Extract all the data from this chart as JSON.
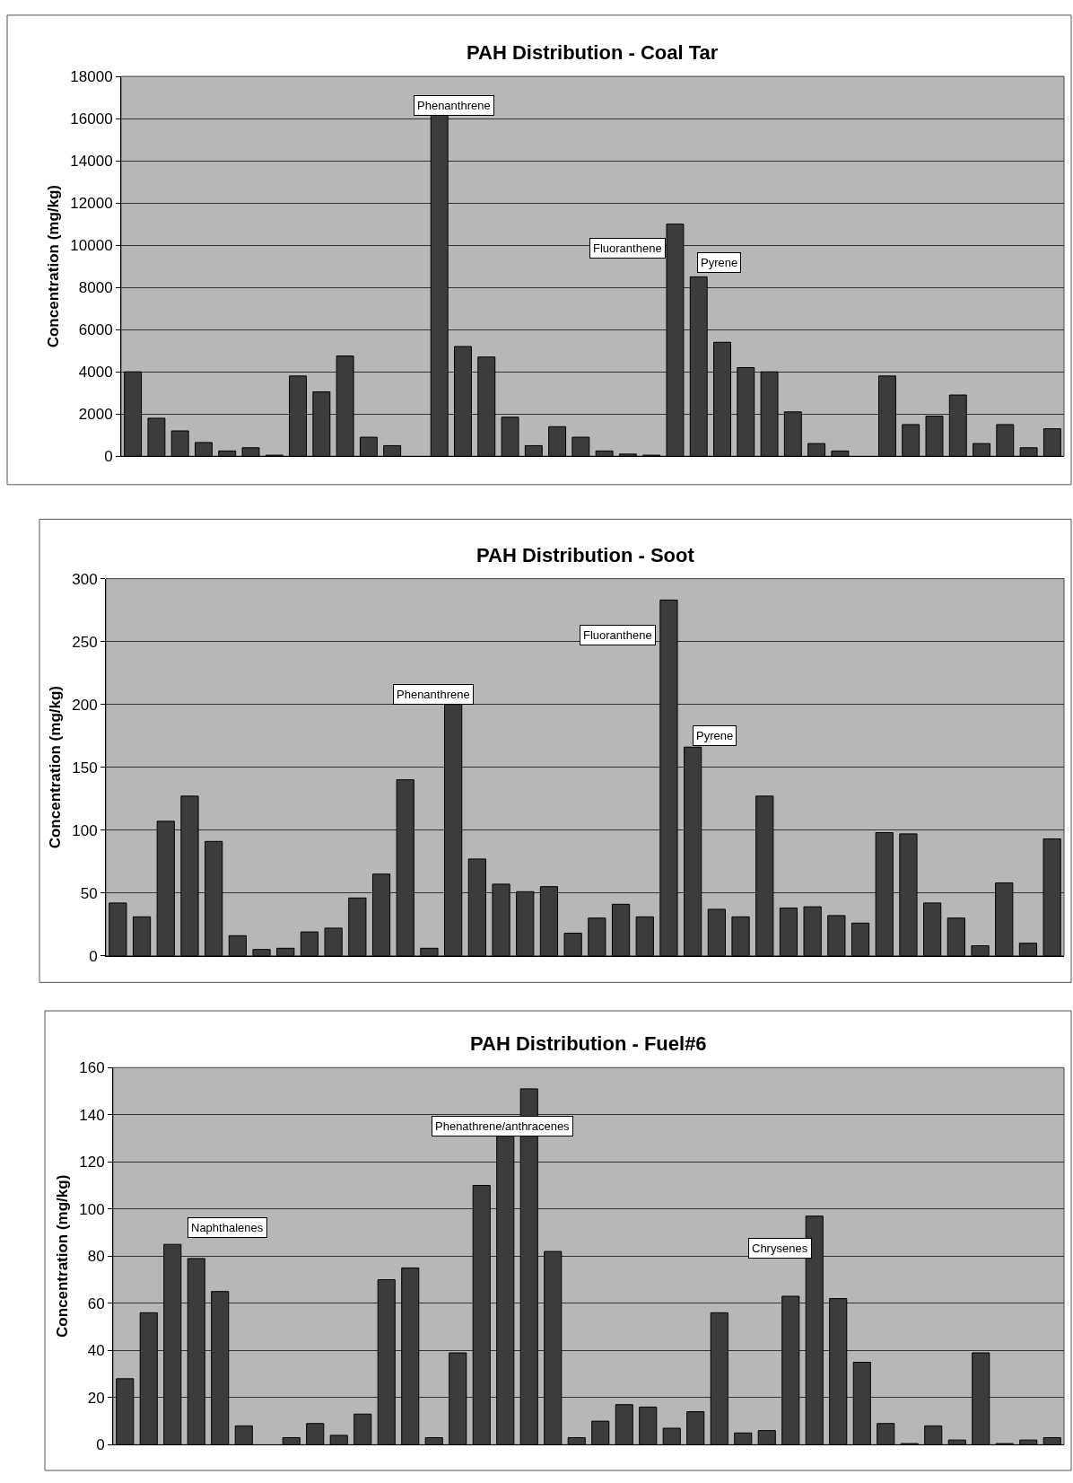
{
  "chart_data": [
    {
      "type": "bar",
      "title": "PAH Distribution - Coal Tar",
      "ylabel": "Concentration (mg/kg)",
      "categories": [
        null,
        null,
        null,
        null,
        null,
        null,
        null,
        null,
        null,
        null,
        null,
        null,
        null,
        null,
        null,
        null,
        null,
        null,
        null,
        null,
        null,
        null,
        null,
        null,
        null,
        null,
        null,
        null,
        null,
        null,
        null,
        null,
        null,
        null,
        null,
        null,
        null,
        null,
        null,
        null
      ],
      "values": [
        4000,
        1800,
        1200,
        650,
        250,
        400,
        50,
        3800,
        3050,
        4750,
        900,
        500,
        null,
        16200,
        5200,
        4700,
        1850,
        500,
        1400,
        900,
        250,
        100,
        50,
        11000,
        8500,
        5400,
        4200,
        4000,
        2100,
        600,
        250,
        null,
        3800,
        1500,
        1900,
        2900,
        600,
        1500,
        400,
        1300
      ],
      "color": "#3c3c3c",
      "ylim": [
        0,
        18000
      ],
      "yticks": [
        0,
        2000,
        4000,
        6000,
        8000,
        10000,
        12000,
        14000,
        16000,
        18000
      ],
      "grid": "y",
      "annotations": [
        "Phenanthrene",
        "Fluoranthene",
        "Pyrene"
      ]
    },
    {
      "type": "bar",
      "title": "PAH Distribution - Soot",
      "ylabel": "Concentration (mg/kg)",
      "categories": [
        null,
        null,
        null,
        null,
        null,
        null,
        null,
        null,
        null,
        null,
        null,
        null,
        null,
        null,
        null,
        null,
        null,
        null,
        null,
        null,
        null,
        null,
        null,
        null,
        null,
        null,
        null,
        null,
        null,
        null,
        null,
        null,
        null,
        null,
        null,
        null,
        null,
        null,
        null,
        null
      ],
      "values": [
        42,
        31,
        107,
        127,
        91,
        16,
        5,
        6,
        19,
        22,
        46,
        65,
        140,
        6,
        200,
        77,
        57,
        51,
        55,
        18,
        30,
        41,
        31,
        283,
        166,
        37,
        31,
        127,
        38,
        39,
        32,
        26,
        98,
        97,
        42,
        30,
        8,
        58,
        10,
        93
      ],
      "color": "#3c3c3c",
      "ylim": [
        0,
        300
      ],
      "yticks": [
        0,
        50,
        100,
        150,
        200,
        250,
        300
      ],
      "grid": "y",
      "annotations": [
        "Phenanthrene",
        "Fluoranthene",
        "Pyrene"
      ]
    },
    {
      "type": "bar",
      "title": "PAH Distribution - Fuel#6",
      "ylabel": "Concentration (mg/kg)",
      "categories": [
        null,
        null,
        null,
        null,
        null,
        null,
        null,
        null,
        null,
        null,
        null,
        null,
        null,
        null,
        null,
        null,
        null,
        null,
        null,
        null,
        null,
        null,
        null,
        null,
        null,
        null,
        null,
        null,
        null,
        null,
        null,
        null,
        null,
        null,
        null,
        null,
        null,
        null,
        null,
        null
      ],
      "values": [
        28,
        56,
        85,
        79,
        65,
        8,
        null,
        3,
        9,
        4,
        13,
        70,
        75,
        3,
        39,
        110,
        131,
        151,
        82,
        3,
        10,
        17,
        16,
        7,
        14,
        56,
        5,
        6,
        63,
        97,
        62,
        35,
        9,
        0.5,
        8,
        2,
        39,
        0.5,
        2,
        3
      ],
      "color": "#3c3c3c",
      "ylim": [
        0,
        160
      ],
      "yticks": [
        0,
        20,
        40,
        60,
        80,
        100,
        120,
        140,
        160
      ],
      "grid": "y",
      "annotations": [
        "Naphthalenes",
        "Phenathrene/anthracenes",
        "Chrysenes"
      ]
    }
  ]
}
